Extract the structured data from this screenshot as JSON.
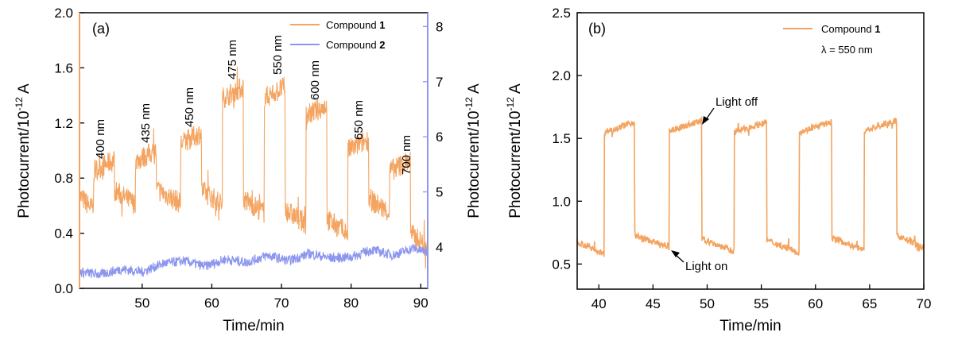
{
  "colors": {
    "compound1": "#F4A460",
    "compound2": "#8C96EE",
    "axis_right_a": "#8C96EE",
    "axis": "#000000"
  },
  "chart_data": [
    {
      "type": "line",
      "panel_label": "(a)",
      "xlabel": "Time/min",
      "ylabel_left": "Photocurrent/10",
      "ylabel_right": "Photocurrent/10",
      "ylabel_exponent": "-12",
      "ylabel_unit": " A",
      "xlim": [
        41,
        91
      ],
      "ylim_left": [
        0,
        2.0
      ],
      "ylim_right": [
        3.25,
        8.25
      ],
      "xticks": [
        50,
        60,
        70,
        80,
        90
      ],
      "xtick_labels": [
        "50",
        "60",
        "70",
        "80",
        "90"
      ],
      "yticks_left": [
        0,
        0.4,
        0.8,
        1.2,
        1.6,
        2.0
      ],
      "ytick_labels_left": [
        "0.0",
        "0.4",
        "0.8",
        "1.2",
        "1.6",
        "2.0"
      ],
      "yticks_right": [
        4,
        5,
        6,
        7,
        8
      ],
      "ytick_labels_right": [
        "4",
        "5",
        "6",
        "7",
        "8"
      ],
      "legend": [
        {
          "text": "Compound ",
          "bold": "1"
        },
        {
          "text": "Compound ",
          "bold": "2"
        }
      ],
      "wavelength_labels": [
        "400 nm",
        "435 nm",
        "450 nm",
        "475 nm",
        "550 nm",
        "600 nm",
        "650 nm",
        "700 nm"
      ],
      "series": [
        {
          "name": "Compound 1",
          "axis": "left",
          "light_on_segments": [
            {
              "start": 43,
              "end": 46,
              "level": 0.85
            },
            {
              "start": 49,
              "end": 52,
              "level": 0.92
            },
            {
              "start": 55.5,
              "end": 58.5,
              "level": 1.05
            },
            {
              "start": 61.5,
              "end": 64.5,
              "level": 1.38
            },
            {
              "start": 67.5,
              "end": 70.5,
              "level": 1.38
            },
            {
              "start": 73.5,
              "end": 76.5,
              "level": 1.25
            },
            {
              "start": 79.5,
              "end": 82.5,
              "level": 1.0
            },
            {
              "start": 85.5,
              "end": 88.5,
              "level": 0.85
            }
          ],
          "baseline": [
            0.62,
            0.66,
            0.67,
            0.66,
            0.6,
            0.52,
            0.45,
            0.6,
            0.35
          ]
        },
        {
          "name": "Compound 2",
          "axis": "right",
          "x": [
            41,
            44,
            47,
            50,
            53,
            56,
            59,
            62,
            65,
            68,
            71,
            74,
            77,
            80,
            83,
            86,
            89,
            91
          ],
          "values": [
            3.55,
            3.5,
            3.6,
            3.55,
            3.7,
            3.75,
            3.65,
            3.78,
            3.72,
            3.85,
            3.75,
            3.88,
            3.8,
            3.82,
            3.95,
            3.85,
            3.98,
            3.9
          ]
        }
      ]
    },
    {
      "type": "line",
      "panel_label": "(b)",
      "xlabel": "Time/min",
      "ylabel": "Photocurrent/10",
      "ylabel_exponent": "-12",
      "ylabel_unit": " A",
      "xlim": [
        38,
        70
      ],
      "ylim": [
        0.3,
        2.5
      ],
      "xticks": [
        40,
        45,
        50,
        55,
        60,
        65,
        70
      ],
      "xtick_labels": [
        "40",
        "45",
        "50",
        "55",
        "60",
        "65",
        "70"
      ],
      "yticks": [
        0.5,
        1.0,
        1.5,
        2.0,
        2.5
      ],
      "ytick_labels": [
        "0.5",
        "1.0",
        "1.5",
        "2.0",
        "2.5"
      ],
      "legend": [
        {
          "text": "Compound ",
          "bold": "1"
        }
      ],
      "legend_sub": "λ = 550 nm",
      "annotations": [
        {
          "text": "Light off",
          "x": 49.2,
          "y": 1.62
        },
        {
          "text": "Light on",
          "x": 46.3,
          "y": 0.68
        }
      ],
      "series": [
        {
          "name": "Compound 1",
          "light_on_segments": [
            {
              "start": 40.5,
              "end": 43.3,
              "level": 1.55
            },
            {
              "start": 46.5,
              "end": 49.5,
              "level": 1.56
            },
            {
              "start": 52.5,
              "end": 55.5,
              "level": 1.55
            },
            {
              "start": 58.5,
              "end": 61.5,
              "level": 1.55
            },
            {
              "start": 64.5,
              "end": 67.5,
              "level": 1.56
            }
          ],
          "baseline": [
            0.63,
            0.68,
            0.65,
            0.64,
            0.66,
            0.68
          ]
        }
      ]
    }
  ]
}
